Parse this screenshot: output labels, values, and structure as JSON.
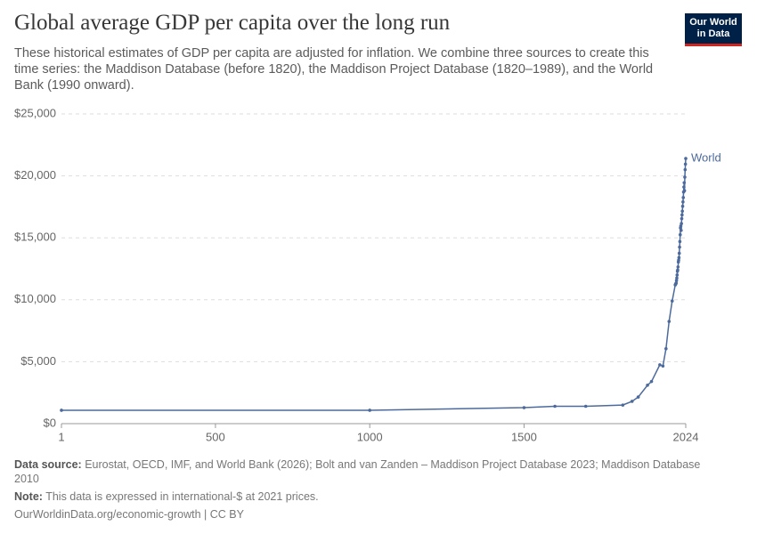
{
  "header": {
    "logo_line1": "Our World",
    "logo_line2": "in Data"
  },
  "chart_data": {
    "type": "line",
    "title": "Global average GDP per capita over the long run",
    "subtitle": "These historical estimates of GDP per capita are adjusted for inflation. We combine three sources to create this time series: the Maddison Database (before 1820), the Maddison Project Database (1820–1989), and the World Bank (1990 onward).",
    "x": [
      1,
      1000,
      1500,
      1600,
      1700,
      1820,
      1850,
      1870,
      1900,
      1913,
      1940,
      1950,
      1960,
      1970,
      1980,
      1990,
      1991,
      1992,
      1993,
      1994,
      1995,
      1996,
      1997,
      1998,
      1999,
      2000,
      2001,
      2002,
      2003,
      2004,
      2005,
      2006,
      2007,
      2008,
      2009,
      2010,
      2011,
      2012,
      2013,
      2014,
      2015,
      2016,
      2017,
      2018,
      2019,
      2020,
      2021,
      2022,
      2023,
      2024
    ],
    "series": [
      {
        "name": "World",
        "color": "#4c6a9c",
        "values": [
          1080,
          1080,
          1290,
          1400,
          1400,
          1500,
          1800,
          2150,
          3100,
          3400,
          4750,
          4650,
          6050,
          8250,
          9900,
          11200,
          11250,
          11300,
          11350,
          11550,
          11750,
          12000,
          12300,
          12400,
          12650,
          13050,
          13200,
          13400,
          13750,
          14250,
          14700,
          15250,
          15800,
          15950,
          15600,
          16150,
          16550,
          16850,
          17150,
          17550,
          17900,
          18250,
          18700,
          19100,
          19450,
          18800,
          19900,
          20500,
          20950,
          21400
        ]
      }
    ],
    "xlim": [
      1,
      2024
    ],
    "xticks": [
      1,
      500,
      1000,
      1500,
      2024
    ],
    "ylim": [
      0,
      25000
    ],
    "yticks": [
      {
        "value": 0,
        "label": "$0"
      },
      {
        "value": 5000,
        "label": "$5,000"
      },
      {
        "value": 10000,
        "label": "$10,000"
      },
      {
        "value": 15000,
        "label": "$15,000"
      },
      {
        "value": 20000,
        "label": "$20,000"
      },
      {
        "value": 25000,
        "label": "$25,000"
      }
    ],
    "grid": true
  },
  "footer": {
    "source_label": "Data source:",
    "source_text": "Eurostat, OECD, IMF, and World Bank (2026); Bolt and van Zanden – Maddison Project Database 2023; Maddison Database 2010",
    "note_label": "Note:",
    "note_text": "This data is expressed in international-$ at 2021 prices.",
    "url": "OurWorldinData.org/economic-growth | CC BY"
  }
}
